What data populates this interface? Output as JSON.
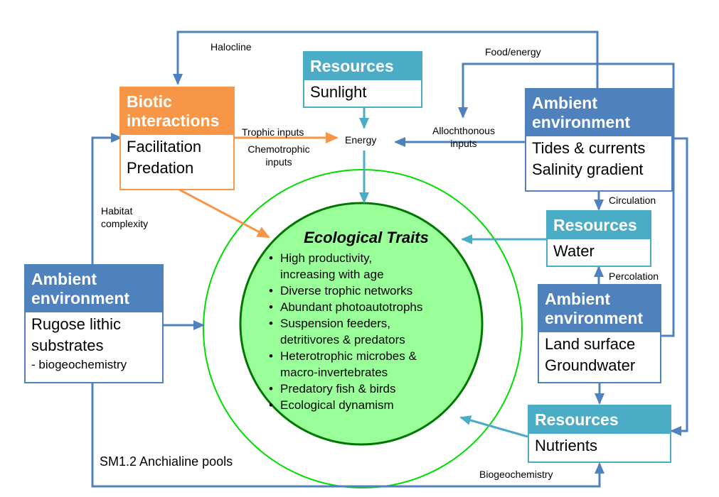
{
  "boxes": {
    "biotic": {
      "header": [
        "Biotic",
        "interactions"
      ],
      "items": [
        "Facilitation",
        "Predation"
      ]
    },
    "resources_sunlight": {
      "header": "Resources",
      "items": [
        "Sunlight"
      ]
    },
    "ambient_tides": {
      "header": [
        "Ambient",
        "environment"
      ],
      "items": [
        "Tides & currents",
        "Salinity gradient"
      ]
    },
    "resources_water": {
      "header": "Resources",
      "items": [
        "Water"
      ]
    },
    "ambient_land": {
      "header": [
        "Ambient",
        "environment"
      ],
      "items": [
        "Land surface",
        "Groundwater"
      ]
    },
    "resources_nutrients": {
      "header": "Resources",
      "items": [
        "Nutrients"
      ]
    },
    "ambient_rugose": {
      "header": [
        "Ambient",
        "environment"
      ],
      "items": [
        "Rugose lithic",
        "substrates"
      ],
      "sub_item": "- biogeochemistry"
    }
  },
  "traits": {
    "title": "Ecological Traits",
    "items": [
      [
        "High productivity,",
        "increasing with age"
      ],
      [
        "Diverse trophic networks"
      ],
      [
        "Abundant photoautotrophs"
      ],
      [
        "Suspension feeders,",
        "detritivores & predators"
      ],
      [
        "Heterotrophic microbes &",
        "macro-invertebrates"
      ],
      [
        "Predatory fish & birds"
      ],
      [
        "Ecological dynamism"
      ]
    ]
  },
  "labels": {
    "halocline": "Halocline",
    "food_energy": "Food/energy",
    "energy": "Energy",
    "trophic_inputs": "Trophic inputs",
    "chemotrophic_inputs": [
      "Chemotrophic",
      "inputs"
    ],
    "allochthonous_inputs": [
      "Allochthonous",
      "inputs"
    ],
    "circulation": "Circulation",
    "percolation": "Percolation",
    "habitat_complexity": [
      "Habitat",
      "complexity"
    ],
    "biogeochemistry": "Biogeochemistry"
  },
  "caption": "SM1.2 Anchialine pools",
  "colors": {
    "orange": "#f79646",
    "blue": "#4f81bd",
    "teal": "#4bacc6",
    "circle_fill": "#99ff99",
    "circle_outline": "#00dd00"
  }
}
